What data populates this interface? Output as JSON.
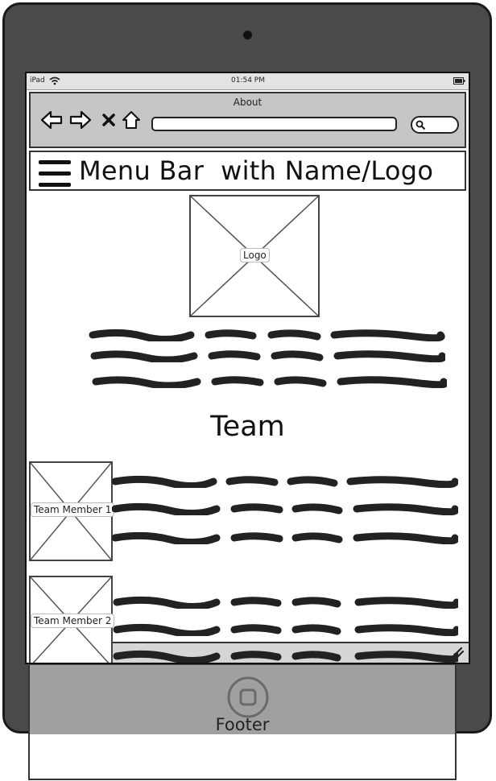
{
  "status_bar": {
    "device": "iPad",
    "time": "01:54 PM"
  },
  "browser": {
    "title": "About",
    "url_value": ""
  },
  "menu_bar": {
    "title": "Menu Bar  with Name/Logo"
  },
  "logo": {
    "label": "Logo"
  },
  "section": {
    "heading": "Team"
  },
  "team": [
    {
      "label": "Team Member 1"
    },
    {
      "label": "Team Member 2"
    }
  ],
  "footer": {
    "label": "Footer"
  }
}
